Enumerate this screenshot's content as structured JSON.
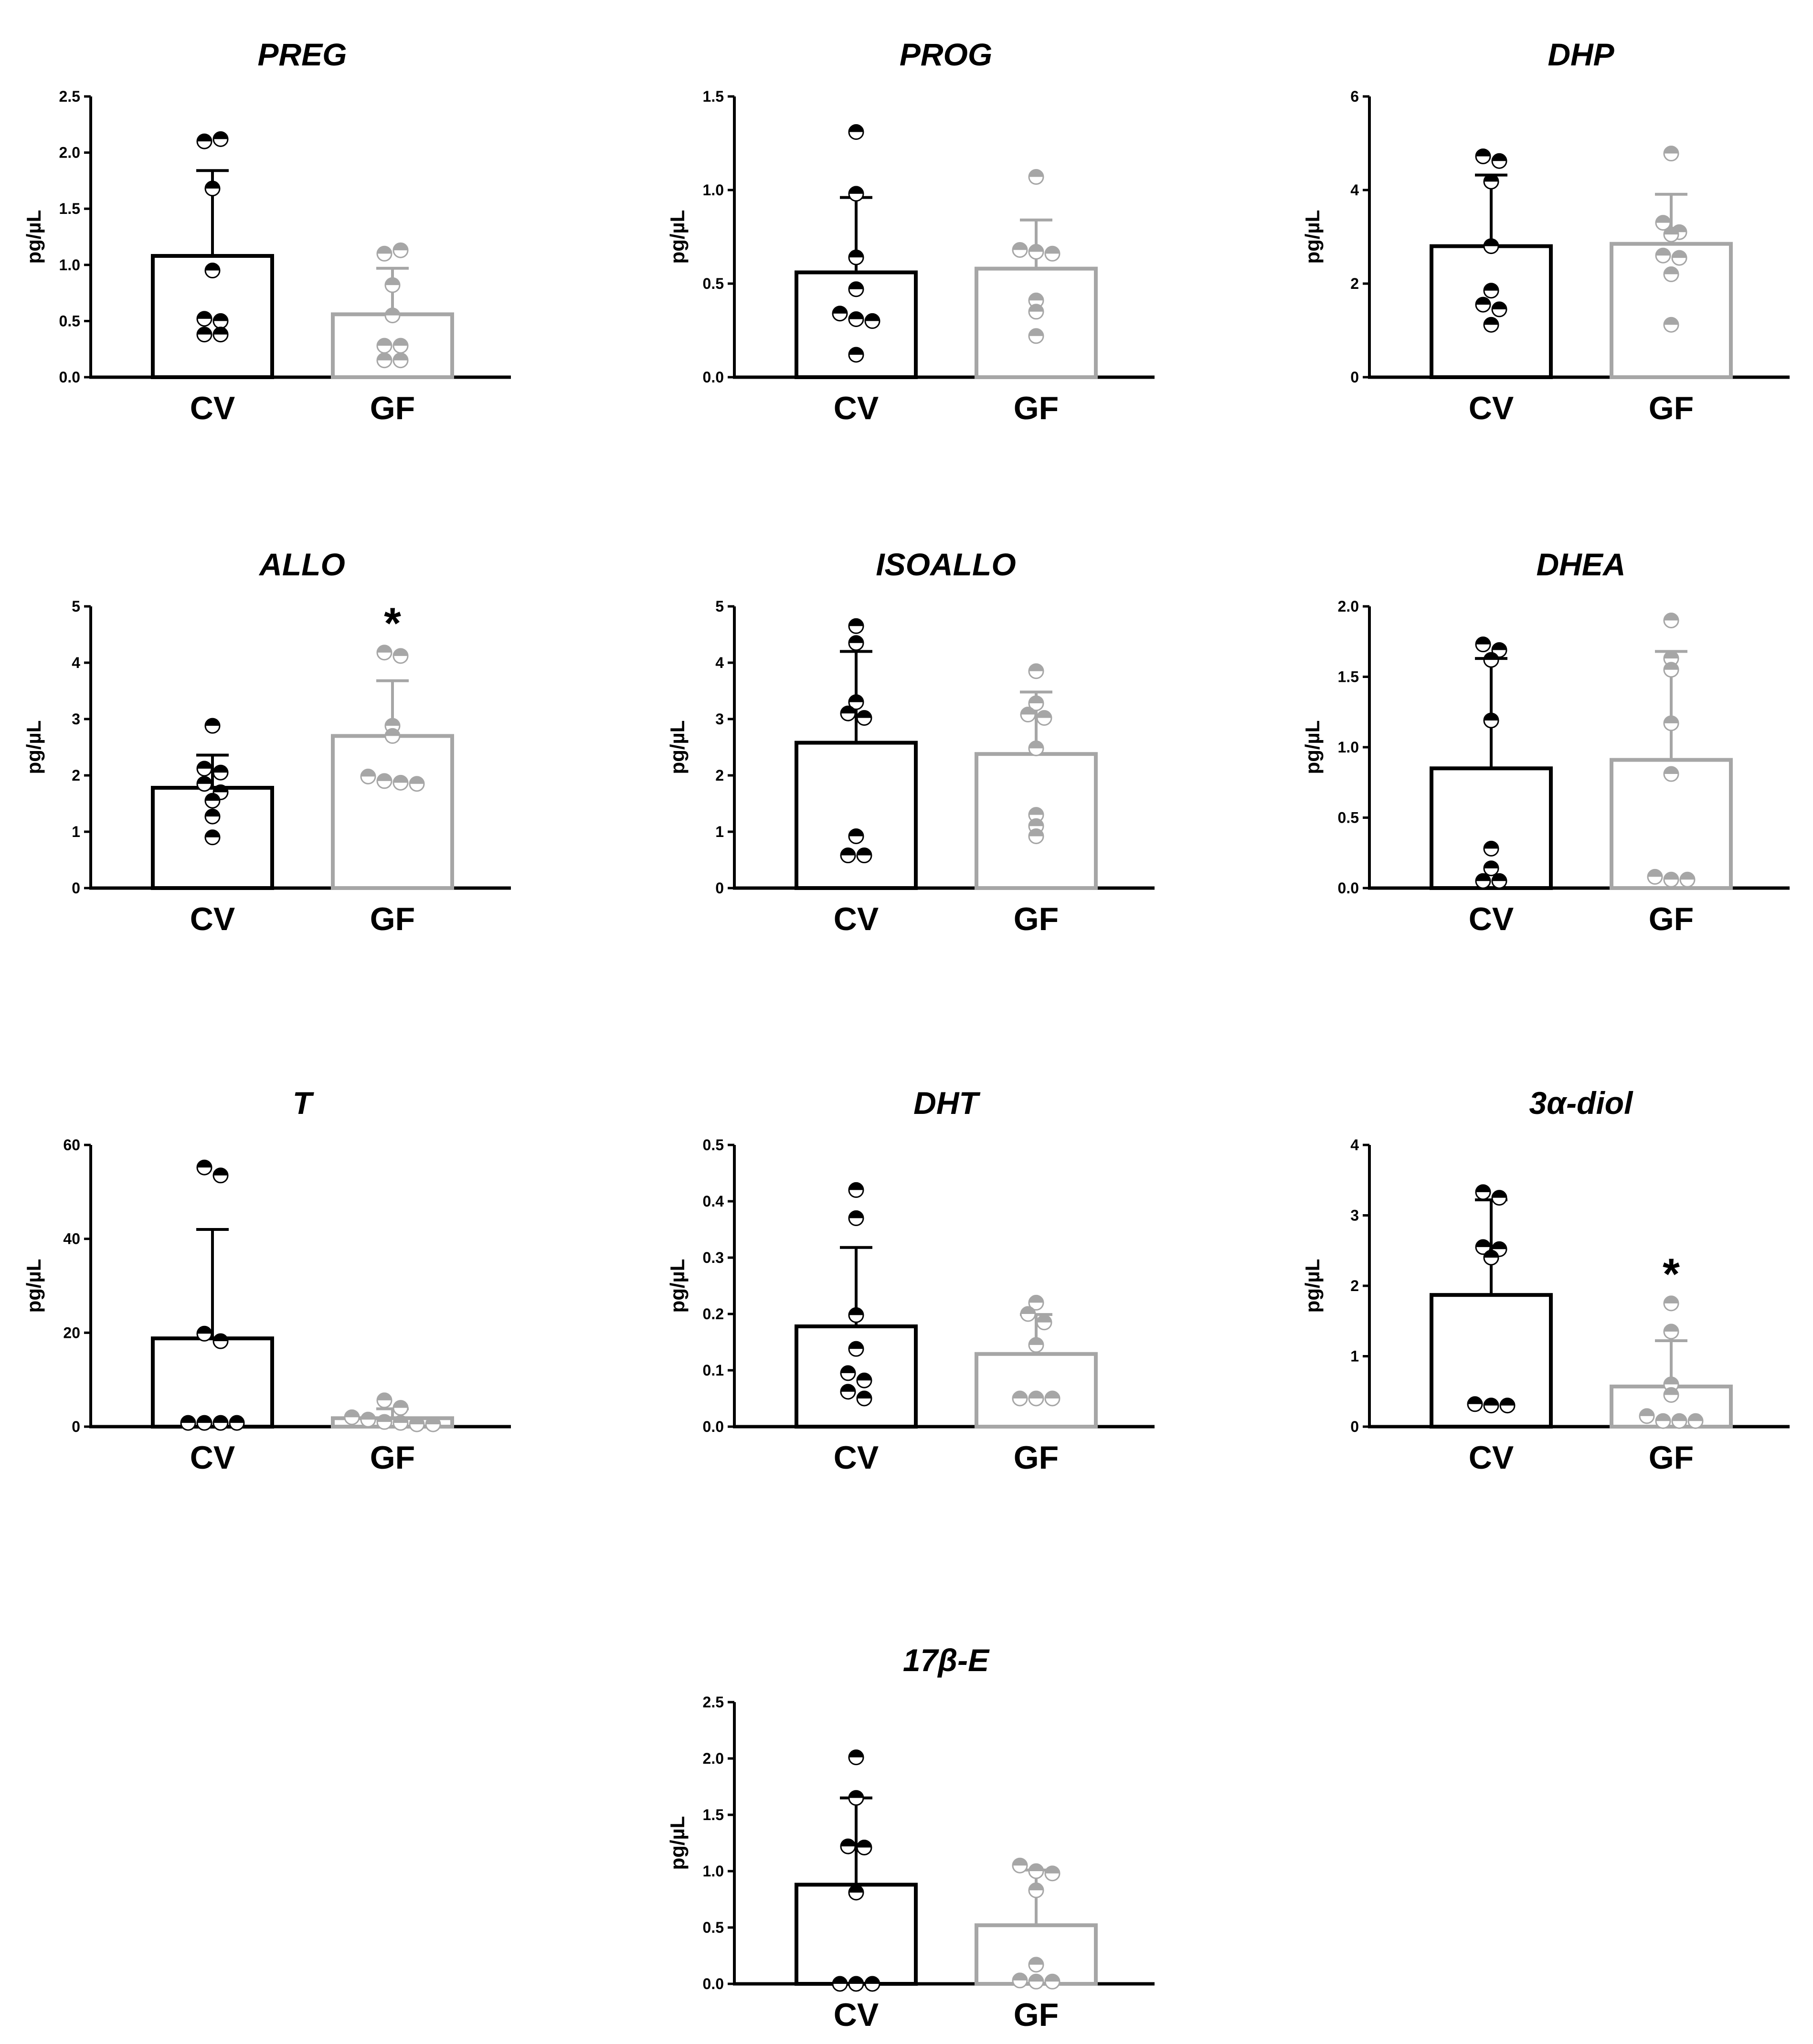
{
  "colors": {
    "cv": "#000000",
    "gf": "#a6a6a6",
    "axis": "#000000",
    "background": "#ffffff"
  },
  "chart_data": [
    {
      "type": "bar",
      "title": "PREG",
      "ylabel": "pg/µL",
      "categories": [
        "CV",
        "GF"
      ],
      "ylim": [
        0,
        2.5
      ],
      "yticks": [
        "0.0",
        "0.5",
        "1.0",
        "1.5",
        "2.0",
        "2.5"
      ],
      "series": [
        {
          "name": "CV",
          "mean": 1.08,
          "error": 0.76,
          "points": [
            2.1,
            2.12,
            1.68,
            0.95,
            0.52,
            0.5,
            0.38,
            0.38
          ]
        },
        {
          "name": "GF",
          "mean": 0.56,
          "error": 0.41,
          "points": [
            1.1,
            1.13,
            0.82,
            0.55,
            0.28,
            0.28,
            0.15,
            0.15
          ]
        }
      ],
      "annotations": []
    },
    {
      "type": "bar",
      "title": "PROG",
      "ylabel": "pg/µL",
      "categories": [
        "CV",
        "GF"
      ],
      "ylim": [
        0,
        1.5
      ],
      "yticks": [
        "0.0",
        "0.5",
        "1.0",
        "1.5"
      ],
      "series": [
        {
          "name": "CV",
          "mean": 0.56,
          "error": 0.4,
          "points": [
            1.31,
            0.98,
            0.64,
            0.47,
            0.34,
            0.31,
            0.3,
            0.12
          ]
        },
        {
          "name": "GF",
          "mean": 0.58,
          "error": 0.26,
          "points": [
            1.07,
            0.68,
            0.67,
            0.66,
            0.41,
            0.35,
            0.22
          ]
        }
      ],
      "annotations": []
    },
    {
      "type": "bar",
      "title": "DHP",
      "ylabel": "pg/µL",
      "categories": [
        "CV",
        "GF"
      ],
      "ylim": [
        0,
        6
      ],
      "yticks": [
        "0",
        "2",
        "4",
        "6"
      ],
      "series": [
        {
          "name": "CV",
          "mean": 2.8,
          "error": 1.52,
          "points": [
            4.72,
            4.62,
            4.18,
            2.8,
            1.85,
            1.55,
            1.45,
            1.12
          ]
        },
        {
          "name": "GF",
          "mean": 2.85,
          "error": 1.06,
          "points": [
            4.78,
            3.3,
            3.1,
            3.05,
            2.6,
            2.55,
            2.2,
            1.12
          ]
        }
      ],
      "annotations": []
    },
    {
      "type": "bar",
      "title": "ALLO",
      "ylabel": "pg/µL",
      "categories": [
        "CV",
        "GF"
      ],
      "ylim": [
        0,
        5
      ],
      "yticks": [
        "0",
        "1",
        "2",
        "3",
        "4",
        "5"
      ],
      "series": [
        {
          "name": "CV",
          "mean": 1.78,
          "error": 0.58,
          "points": [
            2.88,
            2.12,
            2.05,
            1.85,
            1.7,
            1.55,
            1.27,
            0.9
          ]
        },
        {
          "name": "GF",
          "mean": 2.7,
          "error": 0.98,
          "points": [
            4.18,
            4.12,
            2.88,
            2.7,
            1.98,
            1.9,
            1.87,
            1.85
          ]
        }
      ],
      "annotations": [
        {
          "text": "*",
          "group": "GF"
        }
      ]
    },
    {
      "type": "bar",
      "title": "ISOALLO",
      "ylabel": "pg/µL",
      "categories": [
        "CV",
        "GF"
      ],
      "ylim": [
        0,
        5
      ],
      "yticks": [
        "0",
        "1",
        "2",
        "3",
        "4",
        "5"
      ],
      "series": [
        {
          "name": "CV",
          "mean": 2.58,
          "error": 1.62,
          "points": [
            4.65,
            4.35,
            3.3,
            3.1,
            3.02,
            0.92,
            0.58,
            0.58
          ]
        },
        {
          "name": "GF",
          "mean": 2.38,
          "error": 1.1,
          "points": [
            3.85,
            3.28,
            3.08,
            3.02,
            2.48,
            1.3,
            1.1,
            0.92
          ]
        }
      ],
      "annotations": []
    },
    {
      "type": "bar",
      "title": "DHEA",
      "ylabel": "pg/µL",
      "categories": [
        "CV",
        "GF"
      ],
      "ylim": [
        0,
        2.0
      ],
      "yticks": [
        "0.0",
        "0.5",
        "1.0",
        "1.5",
        "2.0"
      ],
      "series": [
        {
          "name": "CV",
          "mean": 0.85,
          "error": 0.78,
          "points": [
            1.73,
            1.69,
            1.62,
            1.19,
            0.28,
            0.14,
            0.05,
            0.05
          ]
        },
        {
          "name": "GF",
          "mean": 0.91,
          "error": 0.77,
          "points": [
            1.9,
            1.63,
            1.55,
            1.17,
            0.81,
            0.08,
            0.06,
            0.06
          ]
        }
      ],
      "annotations": []
    },
    {
      "type": "bar",
      "title": "T",
      "ylabel": "pg/µL",
      "categories": [
        "CV",
        "GF"
      ],
      "ylim": [
        0,
        60
      ],
      "yticks": [
        "0",
        "20",
        "40",
        "60"
      ],
      "series": [
        {
          "name": "CV",
          "mean": 18.8,
          "error": 23.2,
          "points": [
            55.2,
            53.5,
            19.8,
            18.2,
            0.8,
            0.8,
            0.8,
            0.8
          ]
        },
        {
          "name": "GF",
          "mean": 1.8,
          "error": 2.0,
          "points": [
            5.6,
            4.0,
            2.0,
            1.5,
            1.0,
            0.8,
            0.5,
            0.5
          ]
        }
      ],
      "annotations": []
    },
    {
      "type": "bar",
      "title": "DHT",
      "ylabel": "pg/µL",
      "categories": [
        "CV",
        "GF"
      ],
      "ylim": [
        0,
        0.5
      ],
      "yticks": [
        "0.0",
        "0.1",
        "0.2",
        "0.3",
        "0.4",
        "0.5"
      ],
      "series": [
        {
          "name": "CV",
          "mean": 0.178,
          "error": 0.14,
          "points": [
            0.42,
            0.37,
            0.198,
            0.138,
            0.095,
            0.082,
            0.062,
            0.05
          ]
        },
        {
          "name": "GF",
          "mean": 0.129,
          "error": 0.07,
          "points": [
            0.22,
            0.2,
            0.185,
            0.145,
            0.05,
            0.05,
            0.05
          ]
        }
      ],
      "annotations": []
    },
    {
      "type": "bar",
      "title": "3α-diol",
      "ylabel": "pg/µL",
      "categories": [
        "CV",
        "GF"
      ],
      "ylim": [
        0,
        4
      ],
      "yticks": [
        "0",
        "1",
        "2",
        "3",
        "4"
      ],
      "series": [
        {
          "name": "CV",
          "mean": 1.87,
          "error": 1.35,
          "points": [
            3.33,
            3.25,
            2.55,
            2.52,
            2.4,
            0.32,
            0.3,
            0.3
          ]
        },
        {
          "name": "GF",
          "mean": 0.57,
          "error": 0.65,
          "points": [
            1.75,
            1.35,
            0.6,
            0.45,
            0.15,
            0.08,
            0.08,
            0.08
          ]
        }
      ],
      "annotations": [
        {
          "text": "*",
          "group": "GF"
        }
      ]
    },
    {
      "type": "bar",
      "title": "17β-E",
      "ylabel": "pg/µL",
      "categories": [
        "CV",
        "GF"
      ],
      "ylim": [
        0,
        2.5
      ],
      "yticks": [
        "0.0",
        "0.5",
        "1.0",
        "1.5",
        "2.0",
        "2.5"
      ],
      "series": [
        {
          "name": "CV",
          "mean": 0.88,
          "error": 0.77,
          "points": [
            2.01,
            1.65,
            1.22,
            1.21,
            0.81,
            0.0,
            0.0,
            0.0
          ]
        },
        {
          "name": "GF",
          "mean": 0.52,
          "error": 0.49,
          "points": [
            1.05,
            1.0,
            0.98,
            0.83,
            0.17,
            0.03,
            0.02,
            0.02
          ]
        }
      ],
      "annotations": []
    }
  ]
}
